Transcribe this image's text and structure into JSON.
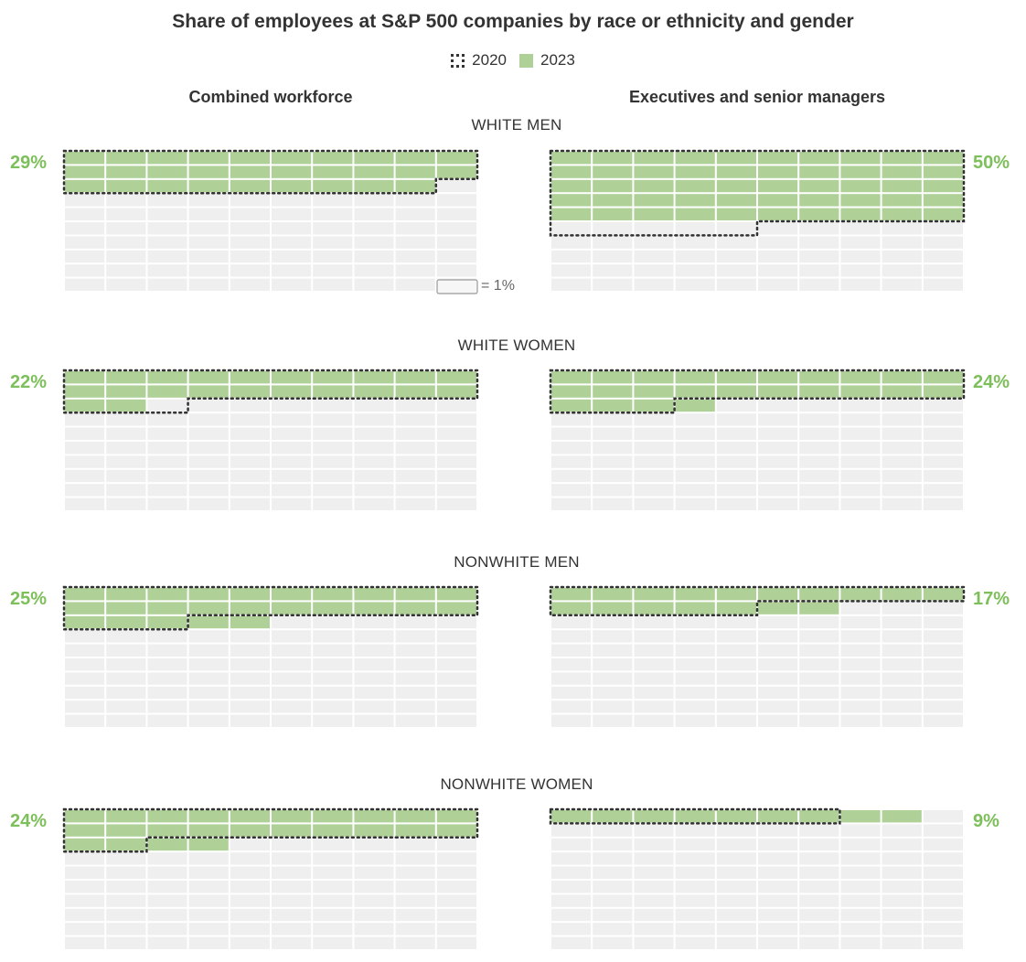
{
  "title": "Share of employees at S&P 500 companies by race or ethnicity and gender",
  "legend": [
    {
      "label": "2020",
      "style": "dotted-outline"
    },
    {
      "label": "2023",
      "style": "green-fill"
    }
  ],
  "columns": [
    "Combined workforce",
    "Executives and senior managers"
  ],
  "key": {
    "label": "= 1%"
  },
  "colors": {
    "filled": "#afd198",
    "empty": "#efeff0",
    "outline_2020": "#333333",
    "percent_text": "#7dbf5a"
  },
  "chart_data": [
    {
      "type": "waffle",
      "group": "WHITE MEN",
      "panel": "Combined workforce",
      "grid": [
        10,
        10
      ],
      "value_2023": 29,
      "value_2020": 29,
      "label": "29%"
    },
    {
      "type": "waffle",
      "group": "WHITE MEN",
      "panel": "Executives and senior managers",
      "grid": [
        10,
        10
      ],
      "value_2023": 50,
      "value_2020": 55,
      "label": "50%"
    },
    {
      "type": "waffle",
      "group": "WHITE WOMEN",
      "panel": "Combined workforce",
      "grid": [
        10,
        10
      ],
      "value_2023": 22,
      "value_2020": 23,
      "label": "22%"
    },
    {
      "type": "waffle",
      "group": "WHITE WOMEN",
      "panel": "Executives and senior managers",
      "grid": [
        10,
        10
      ],
      "value_2023": 24,
      "value_2020": 23,
      "label": "24%"
    },
    {
      "type": "waffle",
      "group": "NONWHITE MEN",
      "panel": "Combined workforce",
      "grid": [
        10,
        10
      ],
      "value_2023": 25,
      "value_2020": 23,
      "label": "25%"
    },
    {
      "type": "waffle",
      "group": "NONWHITE MEN",
      "panel": "Executives and senior managers",
      "grid": [
        10,
        10
      ],
      "value_2023": 17,
      "value_2020": 15,
      "label": "17%"
    },
    {
      "type": "waffle",
      "group": "NONWHITE WOMEN",
      "panel": "Combined workforce",
      "grid": [
        10,
        10
      ],
      "value_2023": 24,
      "value_2020": 22,
      "label": "24%"
    },
    {
      "type": "waffle",
      "group": "NONWHITE WOMEN",
      "panel": "Executives and senior managers",
      "grid": [
        10,
        10
      ],
      "value_2023": 9,
      "value_2020": 7,
      "label": "9%"
    }
  ]
}
